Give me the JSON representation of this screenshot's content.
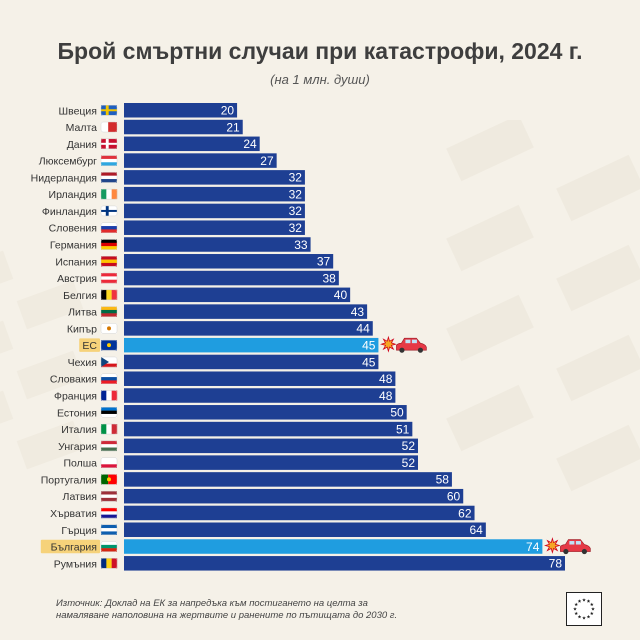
{
  "header": {
    "title": "Брой смъртни случаи при катастрофи, 2024 г.",
    "subtitle": "(на 1 млн. души)"
  },
  "source": {
    "text": "Източник: Доклад на ЕК за напредъка към постигането на целта за намаляване наполовина на жертвите и ранените по пътищата до 2030 г."
  },
  "colors": {
    "bar": "#1e3f93",
    "bar_highlight": "#1f9de0",
    "label_highlight_bg": "#f6d27a",
    "text": "#333333"
  },
  "icons": {
    "highlight_marker": "crash-car-icon",
    "footer_logo": "eu-flag-icon"
  },
  "chart_data": {
    "type": "bar",
    "orientation": "horizontal",
    "title": "Брой смъртни случаи при катастрофи, 2024 г.",
    "subtitle": "(на 1 млн. души)",
    "xlim": [
      0,
      78
    ],
    "categories": [
      "Швеция",
      "Малта",
      "Дания",
      "Люксембург",
      "Нидерландия",
      "Ирландия",
      "Финландия",
      "Словения",
      "Германия",
      "Испания",
      "Австрия",
      "Белгия",
      "Литва",
      "Кипър",
      "ЕС",
      "Чехия",
      "Словакия",
      "Франция",
      "Естония",
      "Италия",
      "Унгария",
      "Полша",
      "Португалия",
      "Латвия",
      "Хърватия",
      "Гърция",
      "България",
      "Румъния"
    ],
    "values": [
      20,
      21,
      24,
      27,
      32,
      32,
      32,
      32,
      33,
      37,
      38,
      40,
      43,
      44,
      45,
      45,
      48,
      48,
      50,
      51,
      52,
      52,
      58,
      60,
      62,
      64,
      74,
      78
    ],
    "highlighted": [
      "ЕС",
      "България"
    ],
    "data_labels": true
  }
}
